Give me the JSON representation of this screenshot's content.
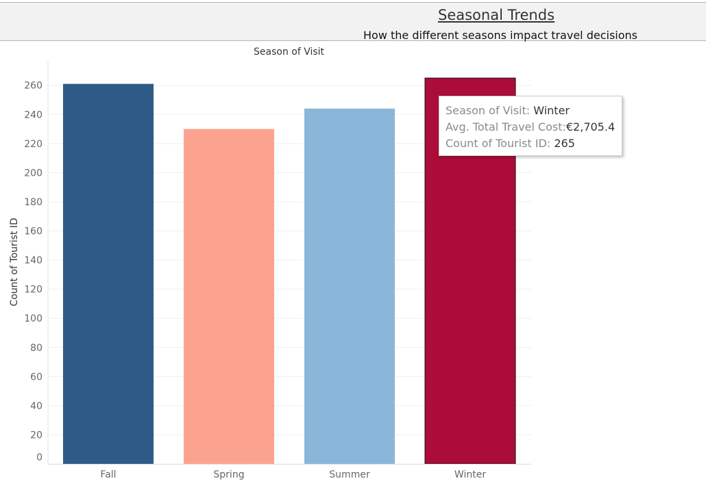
{
  "header": {
    "title": "Seasonal Trends ",
    "subtitle": "How the different seasons impact travel decisions"
  },
  "chart_data": {
    "type": "bar",
    "column_header": "Season of Visit",
    "categories": [
      "Fall",
      "Spring",
      "Summer",
      "Winter"
    ],
    "values": [
      261,
      230,
      244,
      265
    ],
    "colors": [
      "#2e5a87",
      "#fca390",
      "#8ab6da",
      "#ab0d38"
    ],
    "highlighted": "Winter",
    "ylabel": "Count of Tourist ID",
    "xlabel": "",
    "ylim": [
      0,
      260
    ],
    "yticks": [
      0,
      20,
      40,
      60,
      80,
      100,
      120,
      140,
      160,
      180,
      200,
      220,
      240,
      260
    ],
    "grid": true,
    "legend": "none"
  },
  "tooltip": {
    "season_label": "Season of Visit:",
    "season_value": "Winter",
    "cost_label": "Avg. Total Travel Cost:",
    "cost_value": "€2,705.4",
    "count_label": "Count of Tourist ID:",
    "count_value": "265"
  }
}
